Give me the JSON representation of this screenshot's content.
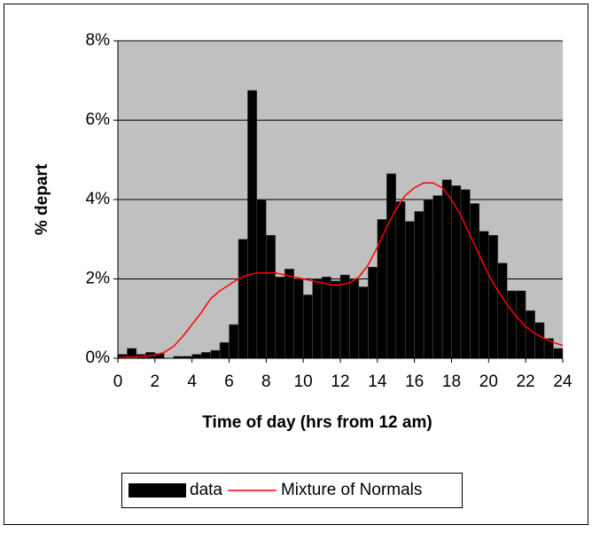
{
  "chart_data": {
    "type": "histogram",
    "xlabel": "Time of day (hrs from 12 am)",
    "ylabel": "% depart",
    "bins": [
      0,
      0.5,
      1,
      1.5,
      2,
      2.5,
      3,
      3.5,
      4,
      4.5,
      5,
      5.5,
      6,
      6.5,
      7,
      7.5,
      8,
      8.5,
      9,
      9.5,
      10,
      10.5,
      11,
      11.5,
      12,
      12.5,
      13,
      13.5,
      14,
      14.5,
      15,
      15.5,
      16,
      16.5,
      17,
      17.5,
      18,
      18.5,
      19,
      19.5,
      20,
      20.5,
      21,
      21.5,
      22,
      22.5,
      23,
      23.5,
      24
    ],
    "series": [
      {
        "name": "data",
        "type": "histogram",
        "color": "#000000",
        "values": [
          0.1,
          0.25,
          0.1,
          0.15,
          0.12,
          0,
          0.05,
          0.05,
          0.1,
          0.15,
          0.2,
          0.4,
          0.85,
          3.0,
          6.75,
          4.0,
          3.1,
          2.05,
          2.25,
          2.0,
          1.6,
          2.0,
          2.05,
          1.95,
          2.1,
          2.0,
          1.8,
          2.3,
          3.5,
          4.65,
          3.95,
          3.45,
          3.7,
          4.0,
          4.1,
          4.5,
          4.35,
          4.25,
          3.9,
          3.2,
          3.1,
          2.4,
          1.7,
          1.7,
          1.2,
          0.9,
          0.5,
          0.25
        ]
      },
      {
        "name": "Mixture of Normals",
        "type": "line",
        "color": "#ff0000",
        "x": [
          0,
          1,
          2,
          2.5,
          3,
          3.5,
          4,
          4.5,
          5,
          5.5,
          6,
          6.5,
          7,
          7.5,
          8,
          8.5,
          9,
          9.5,
          10,
          10.5,
          11,
          11.5,
          12,
          12.5,
          13,
          13.5,
          14,
          14.5,
          15,
          15.5,
          16,
          16.5,
          17,
          17.5,
          18,
          18.5,
          19,
          19.5,
          20,
          20.5,
          21,
          21.5,
          22,
          22.5,
          23,
          23.5,
          24
        ],
        "values": [
          0.02,
          0.03,
          0.08,
          0.15,
          0.3,
          0.55,
          0.85,
          1.15,
          1.5,
          1.7,
          1.85,
          2.0,
          2.1,
          2.15,
          2.15,
          2.15,
          2.1,
          2.05,
          2.0,
          1.95,
          1.9,
          1.85,
          1.85,
          1.9,
          2.05,
          2.35,
          2.8,
          3.3,
          3.75,
          4.1,
          4.3,
          4.42,
          4.42,
          4.3,
          4.0,
          3.6,
          3.1,
          2.6,
          2.1,
          1.7,
          1.35,
          1.05,
          0.8,
          0.62,
          0.5,
          0.4,
          0.32
        ]
      }
    ],
    "xlim": [
      0,
      24
    ],
    "xticks": [
      0,
      2,
      4,
      6,
      8,
      10,
      12,
      14,
      16,
      18,
      20,
      22,
      24
    ],
    "ylim": [
      0,
      8
    ],
    "yticks": [
      {
        "value": 0,
        "label": "0%"
      },
      {
        "value": 2,
        "label": "2%"
      },
      {
        "value": 4,
        "label": "4%"
      },
      {
        "value": 6,
        "label": "6%"
      },
      {
        "value": 8,
        "label": "8%"
      }
    ],
    "grid": true,
    "plot_background": "#c0c0c0",
    "legend": "bottom"
  }
}
